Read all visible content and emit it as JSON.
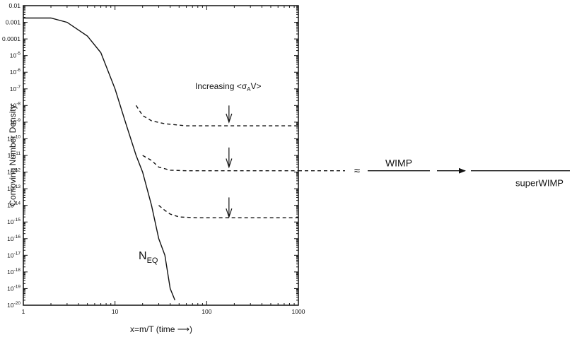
{
  "chart_data": {
    "type": "line",
    "xlabel": "x=m/T (time ⟶)",
    "ylabel": "Comoving Number Density",
    "xscale": "log",
    "yscale": "log",
    "xlim": [
      1,
      1000
    ],
    "ylim": [
      1e-20,
      0.01
    ],
    "grid": false,
    "x_ticks": [
      {
        "value": 1,
        "label": "1"
      },
      {
        "value": 10,
        "label": "10"
      },
      {
        "value": 100,
        "label": "100"
      },
      {
        "value": 1000,
        "label": "1000"
      }
    ],
    "y_ticks": [
      {
        "exp": -2,
        "label": "0.01"
      },
      {
        "exp": -3,
        "label": "0.001"
      },
      {
        "exp": -4,
        "label": "0.0001"
      },
      {
        "exp": -5,
        "base": "10",
        "sup": "-5"
      },
      {
        "exp": -6,
        "base": "10",
        "sup": "-6"
      },
      {
        "exp": -7,
        "base": "10",
        "sup": "-7"
      },
      {
        "exp": -8,
        "base": "10",
        "sup": "-8"
      },
      {
        "exp": -9,
        "base": "10",
        "sup": "-9"
      },
      {
        "exp": -10,
        "base": "10",
        "sup": "-10"
      },
      {
        "exp": -11,
        "base": "10",
        "sup": "-11"
      },
      {
        "exp": -12,
        "base": "10",
        "sup": "-12"
      },
      {
        "exp": -13,
        "base": "10",
        "sup": "-13"
      },
      {
        "exp": -14,
        "base": "10",
        "sup": "-14"
      },
      {
        "exp": -15,
        "base": "10",
        "sup": "-15"
      },
      {
        "exp": -16,
        "base": "10",
        "sup": "-16"
      },
      {
        "exp": -17,
        "base": "10",
        "sup": "-17"
      },
      {
        "exp": -18,
        "base": "10",
        "sup": "-18"
      },
      {
        "exp": -19,
        "base": "10",
        "sup": "-19"
      },
      {
        "exp": -20,
        "base": "10",
        "sup": "-20"
      }
    ],
    "series": [
      {
        "style": "solid",
        "label_base": "N",
        "label_sub": "EQ",
        "points": [
          [
            1,
            0.0018
          ],
          [
            2,
            0.0018
          ],
          [
            3,
            0.001
          ],
          [
            5,
            0.00015
          ],
          [
            7,
            1.5e-05
          ],
          [
            10,
            1e-07
          ],
          [
            13,
            1e-09
          ],
          [
            17,
            1e-11
          ],
          [
            20,
            1e-12
          ],
          [
            25,
            1e-14
          ],
          [
            30,
            1e-16
          ],
          [
            35,
            1e-17
          ],
          [
            40,
            1e-19
          ],
          [
            45,
            2e-20
          ]
        ]
      },
      {
        "style": "dashed",
        "points": [
          [
            17,
            1e-08
          ],
          [
            20,
            2.5e-09
          ],
          [
            25,
            1.2e-09
          ],
          [
            35,
            8e-10
          ],
          [
            60,
            6e-10
          ],
          [
            100,
            6e-10
          ],
          [
            1000,
            6e-10
          ]
        ]
      },
      {
        "style": "dashed",
        "points": [
          [
            20,
            1e-11
          ],
          [
            25,
            5e-12
          ],
          [
            30,
            2e-12
          ],
          [
            40,
            1.3e-12
          ],
          [
            60,
            1.2e-12
          ],
          [
            100,
            1.2e-12
          ],
          [
            1000,
            1.2e-12
          ]
        ]
      },
      {
        "style": "dashed",
        "points": [
          [
            30,
            1e-14
          ],
          [
            35,
            5e-15
          ],
          [
            40,
            3e-15
          ],
          [
            50,
            2e-15
          ],
          [
            80,
            1.8e-15
          ],
          [
            100,
            1.8e-15
          ],
          [
            1000,
            1.8e-15
          ]
        ]
      }
    ],
    "arrow_groups": [
      {
        "x": 175,
        "y_from": 1e-08,
        "y_to": 1e-09
      },
      {
        "x": 175,
        "y_from": 3e-11,
        "y_to": 2e-12
      },
      {
        "x": 175,
        "y_from": 3e-14,
        "y_to": 2e-15
      }
    ],
    "annotations": {
      "increasing_prefix": "Increasing <σ",
      "increasing_sub": "A",
      "increasing_suffix": "V>",
      "break_symbol": "≈",
      "wimp": "WIMP",
      "superwimp": "superWIMP"
    }
  }
}
